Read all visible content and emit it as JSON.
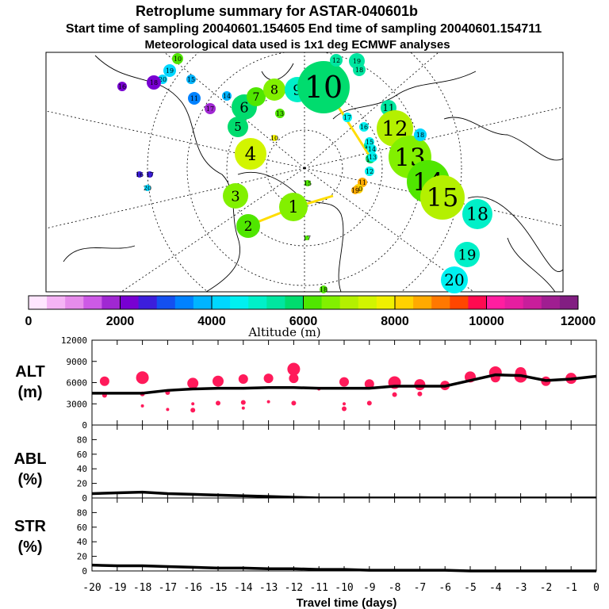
{
  "title": {
    "line1": "Retroplume summary for ASTAR-040601b",
    "line2": "Start time of sampling 20040601.154605     End time of sampling 20040601.154711",
    "line3": "Meteorological data used is 1x1 deg ECMWF analyses"
  },
  "colors": {
    "map_gray": "#c8c8c8",
    "alt_dots": "#ff1a5a",
    "line": "#000000"
  },
  "colorbar": {
    "label": "Altitude (m)",
    "ticks": [
      "0",
      "2000",
      "4000",
      "6000",
      "8000",
      "10000",
      "12000"
    ],
    "range": [
      0,
      12000
    ],
    "colors": [
      "#ffe6ff",
      "#f5b4f5",
      "#e68ceb",
      "#cd5ae6",
      "#a028d2",
      "#7800d2",
      "#3c1edc",
      "#1450f0",
      "#0082ff",
      "#00b4ff",
      "#00d7ff",
      "#00f0f0",
      "#00f0c8",
      "#00e6a0",
      "#00dc6e",
      "#50e600",
      "#82f000",
      "#b4f000",
      "#d2f500",
      "#f0f000",
      "#ffd200",
      "#ffaa00",
      "#ff7800",
      "#ff4600",
      "#ff0a50",
      "#ff1ea0",
      "#e61ea0",
      "#c81e9b",
      "#a01e91",
      "#821e82"
    ]
  },
  "map": {
    "plumes": [
      {
        "day": "1",
        "value": 6600
      },
      {
        "day": "2",
        "value": 6000
      },
      {
        "day": "3",
        "value": 6400
      },
      {
        "day": "4",
        "value": 7200
      },
      {
        "day": "5",
        "value": 5800
      },
      {
        "day": "6",
        "value": 5600
      },
      {
        "day": "7",
        "value": 6200
      },
      {
        "day": "8",
        "value": 6400
      },
      {
        "day": "9",
        "value": 4800
      },
      {
        "day": "10",
        "value": 5600
      },
      {
        "day": "11",
        "value": 5400
      },
      {
        "day": "12",
        "value": 7000
      },
      {
        "day": "13",
        "value": 6400
      },
      {
        "day": "14",
        "value": 6200
      },
      {
        "day": "15",
        "value": 6800
      },
      {
        "day": "16",
        "value": 5400
      },
      {
        "day": "17",
        "value": 5800
      },
      {
        "day": "18",
        "value": 4800
      },
      {
        "day": "19",
        "value": 4800
      },
      {
        "day": "20",
        "value": 4600
      }
    ],
    "small_labels": [
      "10",
      "19",
      "20",
      "18",
      "15",
      "11",
      "17",
      "16",
      "14",
      "13",
      "12",
      "19",
      "18",
      "17",
      "16",
      "15",
      "14",
      "13",
      "12",
      "11",
      "20",
      "18",
      "19",
      "17",
      "16",
      "20",
      "18",
      "17",
      "15",
      "10"
    ]
  },
  "chart_data": [
    {
      "type": "line",
      "panel": "ALT",
      "title": "ALT",
      "ylabel": "(m)",
      "ylim": [
        0,
        12000
      ],
      "yticks": [
        "0",
        "3000",
        "6000",
        "9000",
        "12000"
      ],
      "x": [
        -20,
        -19,
        -18,
        -17,
        -16,
        -15,
        -14,
        -13,
        -12,
        -11,
        -10,
        -9,
        -8,
        -7,
        -6,
        -5,
        -4,
        -3,
        -2,
        -1,
        0
      ],
      "series": [
        {
          "name": "mean altitude",
          "values": [
            4500,
            4500,
            4500,
            4900,
            5100,
            5200,
            5200,
            5300,
            5300,
            5200,
            5200,
            5200,
            5500,
            5500,
            5500,
            6300,
            7100,
            7000,
            6300,
            6500,
            6900
          ]
        },
        {
          "name": "altitude samples",
          "points": [
            [
              -19.5,
              6200
            ],
            [
              -19.5,
              4200
            ],
            [
              -18,
              6700
            ],
            [
              -18,
              4400
            ],
            [
              -18,
              2700
            ],
            [
              -17,
              4600
            ],
            [
              -17,
              2200
            ],
            [
              -16,
              5900
            ],
            [
              -16,
              3000
            ],
            [
              -16,
              2100
            ],
            [
              -15,
              6200
            ],
            [
              -15,
              3100
            ],
            [
              -14,
              6500
            ],
            [
              -14,
              3200
            ],
            [
              -14,
              2400
            ],
            [
              -13,
              6600
            ],
            [
              -13,
              3300
            ],
            [
              -12,
              7900
            ],
            [
              -12,
              6600
            ],
            [
              -12,
              3100
            ],
            [
              -11,
              5100
            ],
            [
              -10,
              6100
            ],
            [
              -10,
              3000
            ],
            [
              -10,
              2300
            ],
            [
              -9,
              5800
            ],
            [
              -9,
              3100
            ],
            [
              -8,
              6000
            ],
            [
              -8,
              4300
            ],
            [
              -7,
              5700
            ],
            [
              -7,
              4400
            ],
            [
              -6,
              5600
            ],
            [
              -5,
              6800
            ],
            [
              -4,
              7400
            ],
            [
              -4,
              6700
            ],
            [
              -3,
              7400
            ],
            [
              -3,
              6900
            ],
            [
              -2,
              6200
            ],
            [
              -1,
              6600
            ]
          ]
        }
      ]
    },
    {
      "type": "line",
      "panel": "ABL",
      "title": "ABL",
      "ylabel": "(%)",
      "ylim": [
        0,
        100
      ],
      "yticks": [
        "0",
        "20",
        "40",
        "60",
        "80"
      ],
      "x": [
        -20,
        -19,
        -18,
        -17,
        -16,
        -15,
        -14,
        -13,
        -12,
        -11,
        -10,
        -9,
        -8,
        -7,
        -6,
        -5,
        -4,
        -3,
        -2,
        -1,
        0
      ],
      "series": [
        {
          "name": "ABL",
          "values": [
            6,
            7,
            8,
            6,
            5,
            4,
            3,
            2,
            1,
            0,
            0,
            0,
            0,
            0,
            0,
            0,
            0,
            0,
            0,
            0,
            0
          ]
        }
      ]
    },
    {
      "type": "line",
      "panel": "STR",
      "title": "STR",
      "ylabel": "(%)",
      "ylim": [
        0,
        100
      ],
      "yticks": [
        "0",
        "20",
        "40",
        "60",
        "80"
      ],
      "xlabel": "Travel time (days)",
      "xticks": [
        "-20",
        "-19",
        "-18",
        "-17",
        "-16",
        "-15",
        "-14",
        "-13",
        "-12",
        "-11",
        "-10",
        "-9",
        "-8",
        "-7",
        "-6",
        "-5",
        "-4",
        "-3",
        "-2",
        "-1",
        "0"
      ],
      "x": [
        -20,
        -19,
        -18,
        -17,
        -16,
        -15,
        -14,
        -13,
        -12,
        -11,
        -10,
        -9,
        -8,
        -7,
        -6,
        -5,
        -4,
        -3,
        -2,
        -1,
        0
      ],
      "series": [
        {
          "name": "STR",
          "values": [
            8,
            7,
            7,
            6,
            5,
            4,
            4,
            3,
            3,
            2,
            2,
            1,
            1,
            1,
            1,
            0,
            0,
            0,
            0,
            0,
            0
          ]
        }
      ]
    }
  ]
}
